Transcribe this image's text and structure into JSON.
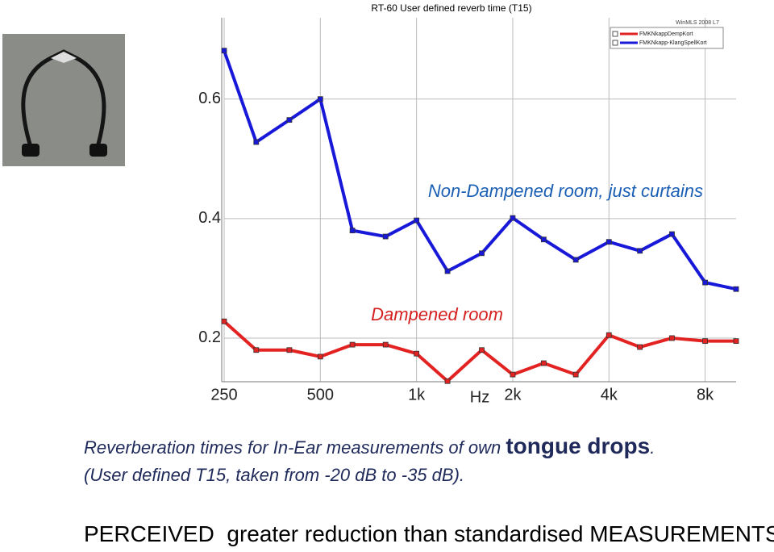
{
  "chart_data": {
    "type": "line",
    "title": "RT-60 User defined reverb time (T15)",
    "subtitle": "WinMLS 2008 L7",
    "x_label": "Hz",
    "xscale": "log",
    "x": [
      250,
      315,
      400,
      500,
      630,
      800,
      1000,
      1250,
      1600,
      2000,
      2500,
      3150,
      4000,
      5000,
      6300,
      8000,
      10000
    ],
    "series": [
      {
        "name": "FMKNkappDempKort",
        "color": "#e32222",
        "values": [
          0.228,
          0.18,
          0.18,
          0.169,
          0.189,
          0.189,
          0.174,
          0.128,
          0.18,
          0.139,
          0.158,
          0.139,
          0.205,
          0.185,
          0.2,
          0.195,
          0.195
        ]
      },
      {
        "name": "FMKNkapp-KlangSpellKort",
        "color": "#1818d8",
        "values": [
          0.681,
          0.528,
          0.565,
          0.6,
          0.38,
          0.37,
          0.397,
          0.312,
          0.342,
          0.401,
          0.365,
          0.331,
          0.361,
          0.346,
          0.374,
          0.293,
          0.282
        ]
      }
    ],
    "xlim": [
      250,
      10000
    ],
    "xticks": [
      250,
      500,
      {
        "value": 1000,
        "label": "1k"
      },
      {
        "value": 2000,
        "label": "2k"
      },
      {
        "value": 4000,
        "label": "4k"
      },
      {
        "value": 8000,
        "label": "8k"
      }
    ],
    "ylim": [
      0.127,
      0.736
    ],
    "yticks": [
      0.2,
      0.4,
      0.6
    ],
    "grid": true,
    "annotations": [
      "Non-Dampened room, just curtains",
      "Dampened room"
    ]
  },
  "caption": {
    "line1": "Reverberation times for In-Ear measurements of own ",
    "emphasis": "tongue drops",
    "end": ".",
    "line2": "(User defined T15, taken from -20 dB to -35 dB).",
    "statement": "PERCEIVED  greater reduction than standardised MEASUREMENTS"
  }
}
